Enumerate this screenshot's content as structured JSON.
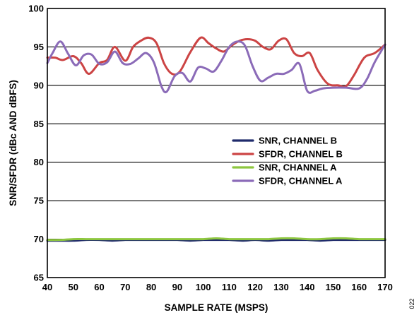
{
  "figure_id": "022",
  "chart_data": {
    "type": "line",
    "xlabel": "SAMPLE RATE (MSPS)",
    "ylabel": "SNR/SFDR (dBc AND dBFS)",
    "xlim": [
      40,
      170
    ],
    "ylim": [
      65,
      100
    ],
    "x_ticks": [
      40,
      50,
      60,
      70,
      80,
      90,
      100,
      110,
      120,
      130,
      140,
      150,
      160,
      170
    ],
    "y_ticks": [
      65,
      70,
      75,
      80,
      85,
      90,
      95,
      100
    ],
    "grid": "horizontal",
    "legend_position": "center-right",
    "series": [
      {
        "name": "SNR, CHANNEL B",
        "color": "#1f2a6b",
        "x": [
          40,
          45,
          50,
          55,
          60,
          65,
          70,
          75,
          80,
          85,
          90,
          95,
          100,
          105,
          110,
          115,
          120,
          125,
          130,
          135,
          140,
          145,
          150,
          155,
          160,
          165,
          170
        ],
        "y": [
          69.8,
          69.8,
          69.8,
          69.9,
          69.9,
          69.8,
          69.9,
          69.9,
          69.9,
          69.9,
          69.9,
          69.8,
          69.9,
          69.9,
          69.9,
          69.8,
          69.9,
          69.8,
          69.9,
          69.9,
          69.9,
          69.8,
          69.9,
          69.9,
          69.9,
          69.9,
          69.9
        ]
      },
      {
        "name": "SFDR, CHANNEL B",
        "color": "#cc4444",
        "x": [
          40,
          43,
          46,
          50,
          53,
          56,
          60,
          63,
          66,
          70,
          73,
          76,
          79,
          82,
          85,
          88,
          91,
          95,
          99,
          102,
          105,
          108,
          111,
          114,
          117,
          120,
          123,
          126,
          129,
          132,
          135,
          138,
          141,
          144,
          148,
          152,
          155,
          158,
          162,
          166,
          170
        ],
        "y": [
          93.6,
          93.6,
          93.3,
          93.8,
          92.9,
          91.5,
          92.9,
          93.3,
          95.0,
          93.2,
          95.0,
          95.8,
          96.2,
          95.5,
          92.8,
          91.5,
          91.8,
          94.3,
          96.2,
          95.5,
          94.8,
          94.4,
          95.2,
          95.8,
          96.0,
          95.8,
          95.0,
          94.7,
          95.8,
          96.0,
          94.2,
          93.8,
          94.2,
          92.0,
          90.2,
          90.0,
          89.9,
          91.3,
          93.6,
          94.2,
          95.3
        ]
      },
      {
        "name": "SNR, CHANNEL A",
        "color": "#8dc63f",
        "x": [
          40,
          45,
          50,
          55,
          60,
          65,
          70,
          75,
          80,
          85,
          90,
          95,
          100,
          105,
          110,
          115,
          120,
          125,
          130,
          135,
          140,
          145,
          150,
          155,
          160,
          165,
          170
        ],
        "y": [
          69.9,
          69.9,
          70.0,
          70.0,
          70.0,
          70.0,
          70.0,
          70.0,
          70.0,
          70.0,
          70.0,
          70.0,
          70.0,
          70.1,
          70.0,
          70.0,
          70.0,
          70.0,
          70.1,
          70.1,
          70.0,
          70.0,
          70.1,
          70.1,
          70.0,
          70.0,
          70.0
        ]
      },
      {
        "name": "SFDR, CHANNEL A",
        "color": "#8b6bb8",
        "x": [
          40,
          42,
          45,
          48,
          51,
          54,
          57,
          60,
          63,
          66,
          69,
          72,
          75,
          78,
          81,
          84,
          86,
          89,
          92,
          95,
          98,
          101,
          104,
          107,
          110,
          113,
          116,
          119,
          122,
          125,
          128,
          131,
          134,
          137,
          140,
          143,
          146,
          150,
          155,
          160,
          163,
          166,
          170
        ],
        "y": [
          92.9,
          94.2,
          95.7,
          94.1,
          92.6,
          93.9,
          94.0,
          92.8,
          93.0,
          94.4,
          92.9,
          92.8,
          93.5,
          94.2,
          93.0,
          89.8,
          89.2,
          91.2,
          91.6,
          90.5,
          92.3,
          92.2,
          91.8,
          93.2,
          95.0,
          95.7,
          95.2,
          92.5,
          90.6,
          91.0,
          91.5,
          91.5,
          92.0,
          92.8,
          89.3,
          89.3,
          89.6,
          89.7,
          89.7,
          89.6,
          90.8,
          93.0,
          95.3
        ]
      }
    ]
  }
}
